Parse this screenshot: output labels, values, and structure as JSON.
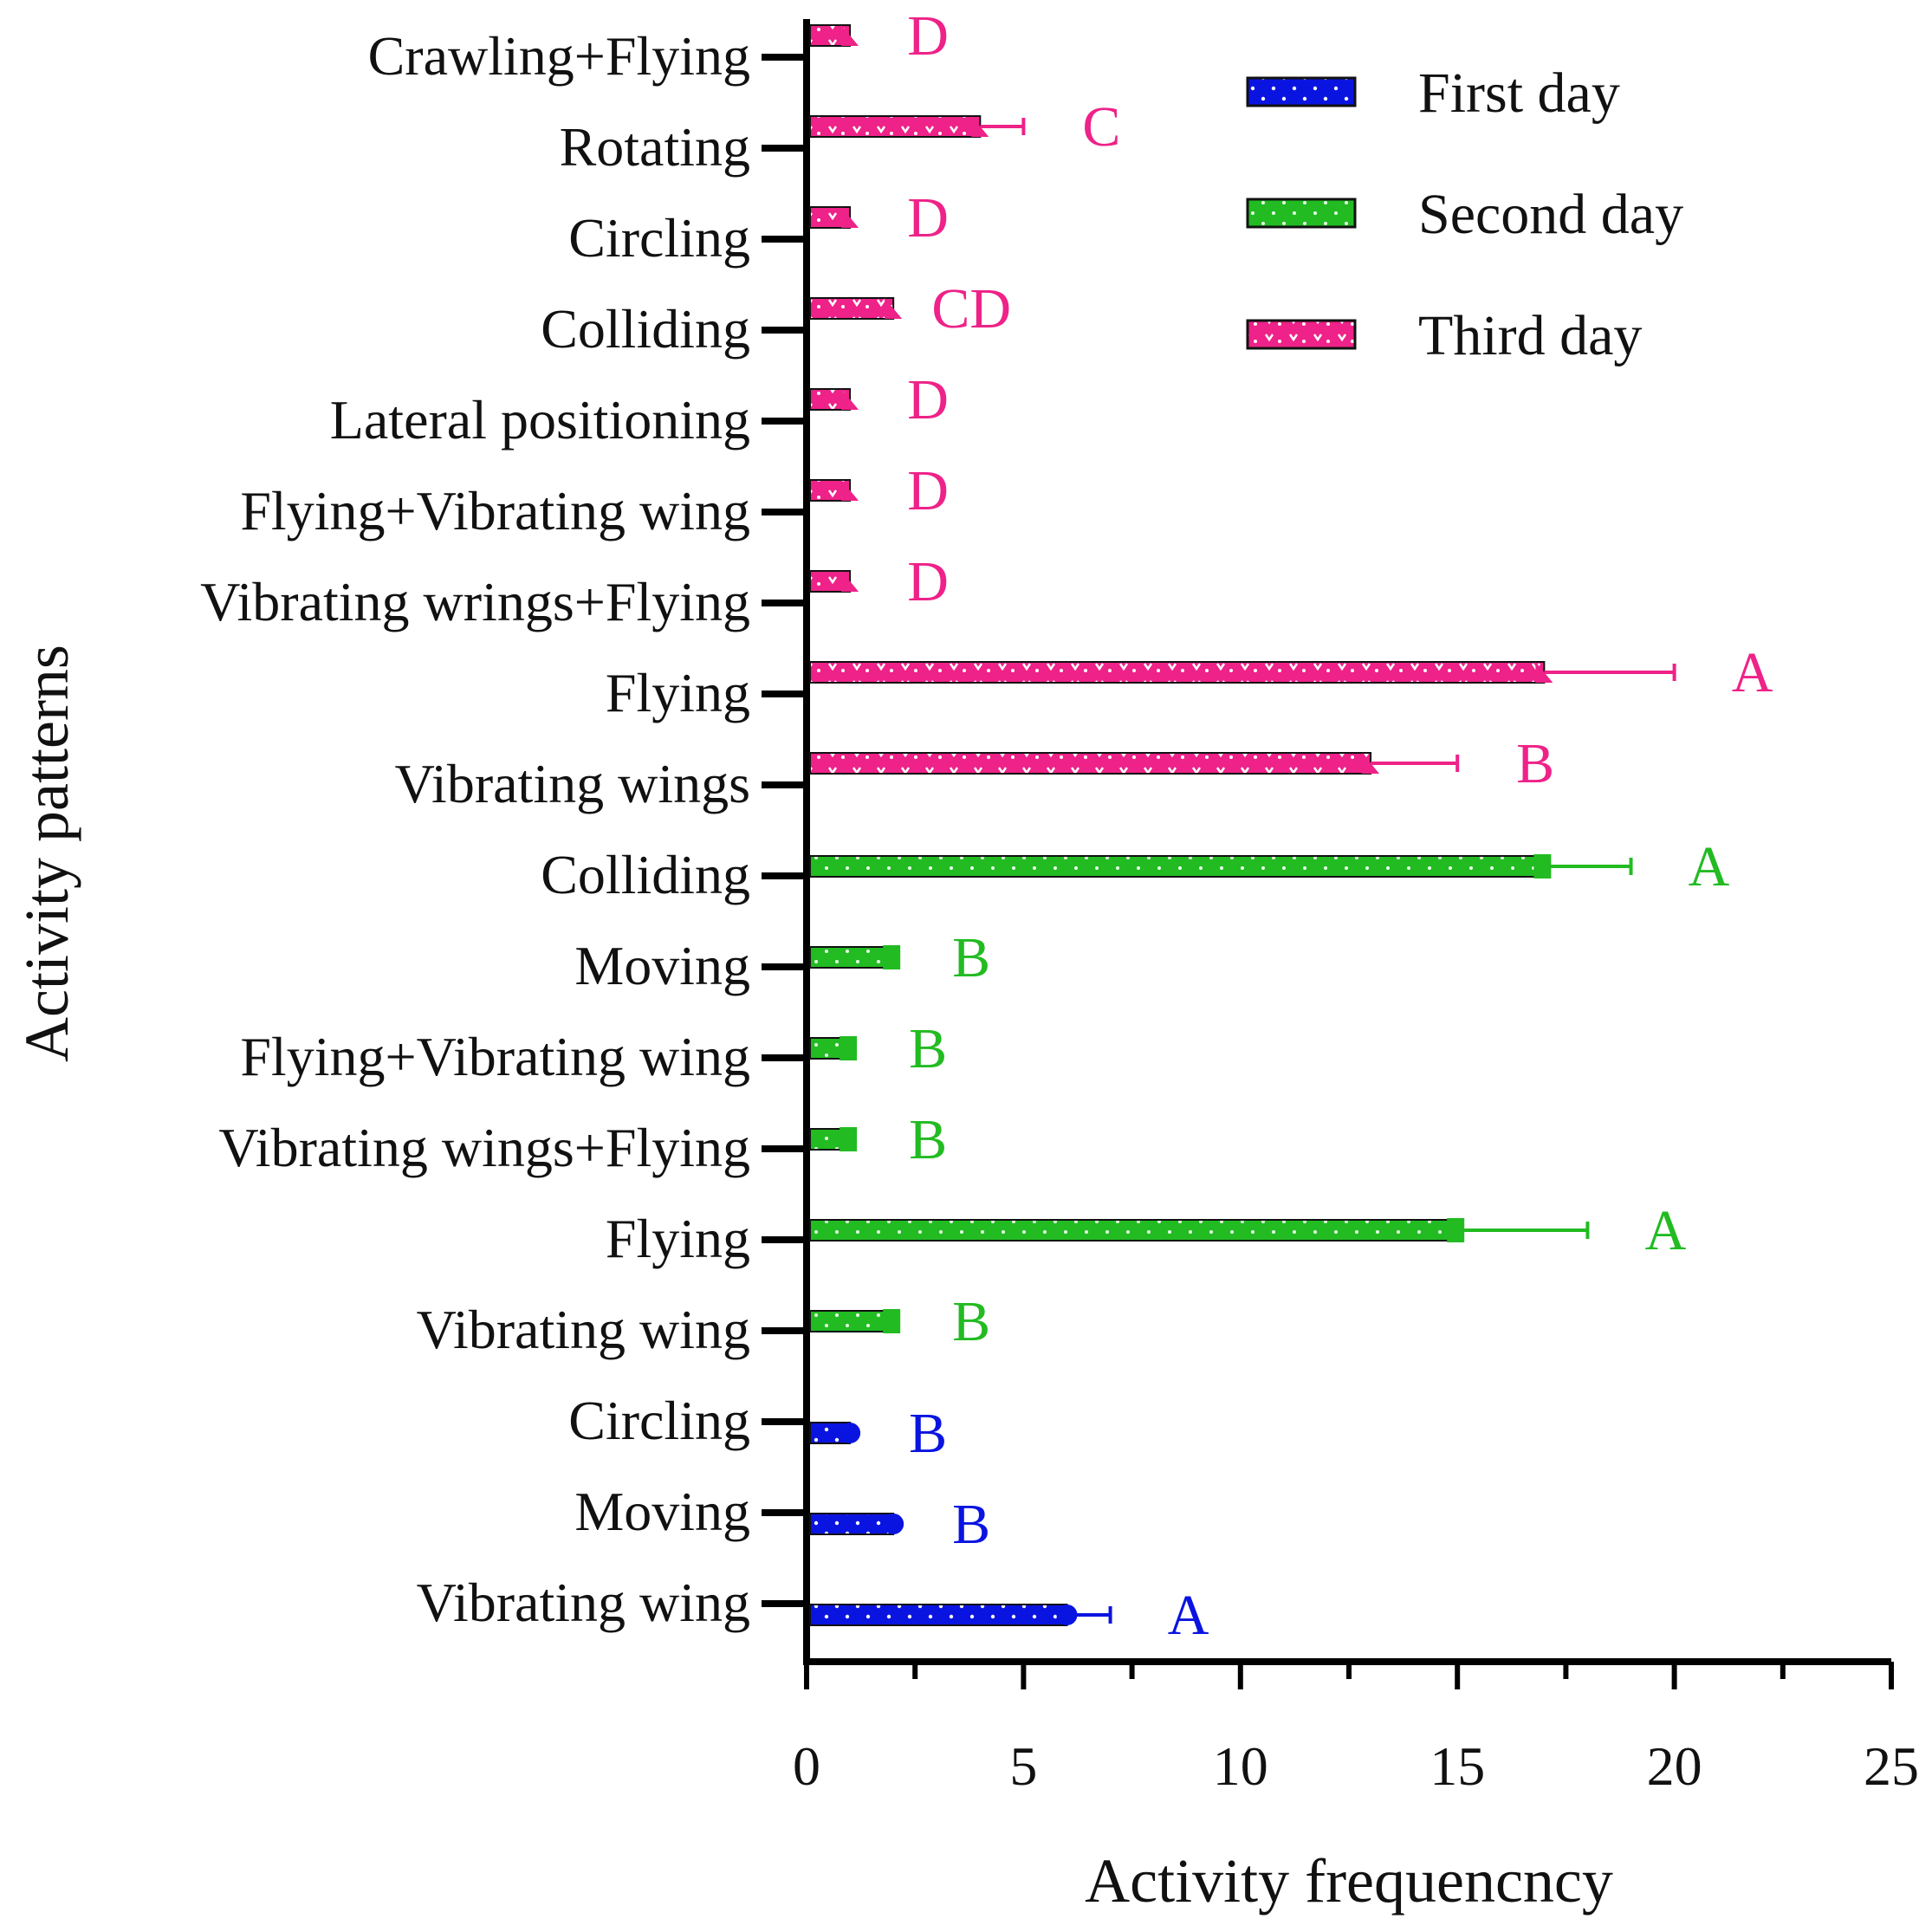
{
  "chart_data": {
    "type": "bar",
    "orientation": "horizontal",
    "xlabel": "Activity frequencncy",
    "ylabel": "Activity patterns",
    "xlim": [
      0,
      25
    ],
    "xticks": [
      "0",
      "5",
      "10",
      "15",
      "20",
      "25"
    ],
    "grid": false,
    "legend_position": "top-right",
    "legend": [
      {
        "name": "First day",
        "color": "#0a14e0"
      },
      {
        "name": "Second day",
        "color": "#22bb22"
      },
      {
        "name": "Third day",
        "color": "#ee2288"
      }
    ],
    "categories": [
      "Crawling+Flying",
      "Rotating",
      "Circling",
      "Colliding",
      "Lateral positioning",
      "Flying+Vibrating wing",
      "Vibrating wrings+Flying",
      "Flying",
      "Vibrating wings",
      "Colliding",
      "Moving",
      "Flying+Vibrating wing",
      "Vibrating wings+Flying",
      "Flying",
      "Vibrating wing",
      "Circling",
      "Moving",
      "Vibrating wing"
    ],
    "bars": [
      {
        "series": 2,
        "value": 1,
        "error": 0,
        "sig": "D"
      },
      {
        "series": 2,
        "value": 4,
        "error": 1,
        "sig": "C"
      },
      {
        "series": 2,
        "value": 1,
        "error": 0,
        "sig": "D"
      },
      {
        "series": 2,
        "value": 2,
        "error": 0,
        "sig": "CD"
      },
      {
        "series": 2,
        "value": 1,
        "error": 0,
        "sig": "D"
      },
      {
        "series": 2,
        "value": 1,
        "error": 0,
        "sig": "D"
      },
      {
        "series": 2,
        "value": 1,
        "error": 0,
        "sig": "D"
      },
      {
        "series": 2,
        "value": 17,
        "error": 3,
        "sig": "A"
      },
      {
        "series": 2,
        "value": 13,
        "error": 2,
        "sig": "B"
      },
      {
        "series": 1,
        "value": 17,
        "error": 2,
        "sig": "A"
      },
      {
        "series": 1,
        "value": 2,
        "error": 0,
        "sig": "B"
      },
      {
        "series": 1,
        "value": 1,
        "error": 0,
        "sig": "B"
      },
      {
        "series": 1,
        "value": 1,
        "error": 0,
        "sig": "B"
      },
      {
        "series": 1,
        "value": 15,
        "error": 3,
        "sig": "A"
      },
      {
        "series": 1,
        "value": 2,
        "error": 0,
        "sig": "B"
      },
      {
        "series": 0,
        "value": 1,
        "error": 0,
        "sig": "B"
      },
      {
        "series": 0,
        "value": 2,
        "error": 0,
        "sig": "B"
      },
      {
        "series": 0,
        "value": 6,
        "error": 1,
        "sig": "A"
      }
    ]
  }
}
